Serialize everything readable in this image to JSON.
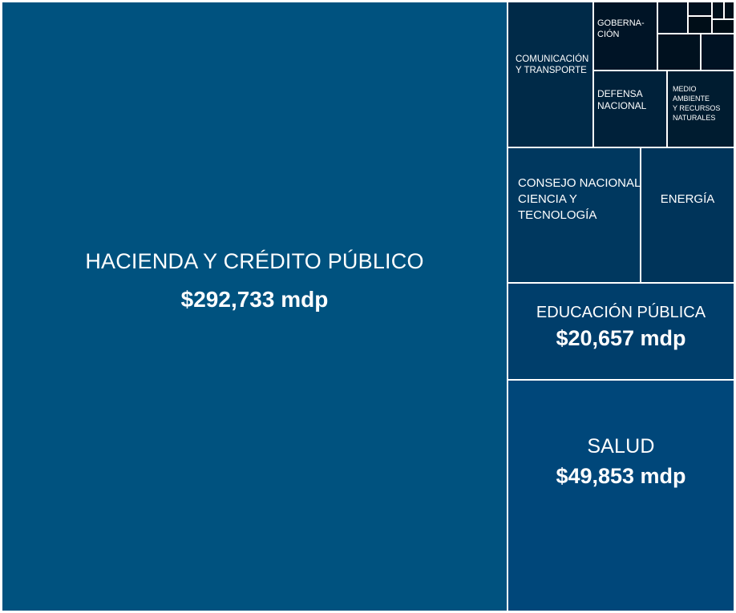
{
  "chart_data": {
    "type": "treemap",
    "unit": "mdp",
    "items": [
      {
        "name": "HACIENDA Y CRÉDITO PÚBLICO",
        "value": 292733,
        "value_label": "$292,733 mdp",
        "color": "#00527f"
      },
      {
        "name": "SALUD",
        "value": 49853,
        "value_label": "$49,853 mdp",
        "color": "#00477a"
      },
      {
        "name": "EDUCACIÓN PÚBLICA",
        "value": 20657,
        "value_label": "$20,657 mdp",
        "color": "#003e6b"
      },
      {
        "name": "CONSEJO NACIONAL CIENCIA Y TECNOLOGÍA",
        "lines": [
          "CONSEJO NACIONAL",
          "CIENCIA Y",
          "TECNOLOGÍA"
        ],
        "color": "#00385f"
      },
      {
        "name": "ENERGÍA",
        "color": "#00345a"
      },
      {
        "name": "COMUNICACIÓN Y TRANSPORTE",
        "lines": [
          "COMUNICACIÓN",
          "Y TRANSPORTE"
        ],
        "color": "#002a48"
      },
      {
        "name": "DEFENSA NACIONAL",
        "lines": [
          "DEFENSA",
          "NACIONAL"
        ],
        "color": "#00213a"
      },
      {
        "name": "MEDIO AMBIENTE Y RECURSOS NATURALES",
        "lines": [
          "MEDIO",
          "AMBIENTE",
          "Y RECURSOS",
          "NATURALES"
        ],
        "color": "#001c30"
      },
      {
        "name": "GOBERNACIÓN",
        "lines": [
          "GOBERNA-",
          "CIÓN"
        ],
        "color": "#001426"
      }
    ],
    "unlabeled_colors": [
      "#001223",
      "#00111f",
      "#00101c",
      "#000f1a",
      "#000e18",
      "#000d16"
    ]
  }
}
